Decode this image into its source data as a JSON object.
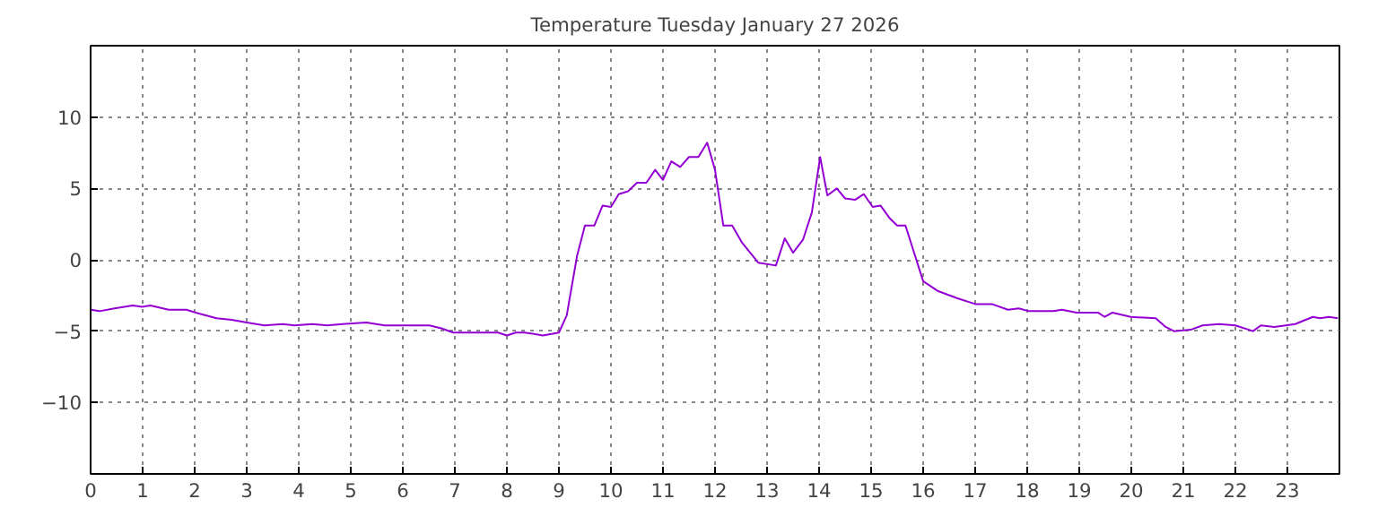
{
  "chart_data": {
    "type": "line",
    "title": "Temperature Tuesday January 27 2026",
    "xlim": [
      0,
      24
    ],
    "xticks": [
      0,
      1,
      2,
      3,
      4,
      5,
      6,
      7,
      8,
      9,
      10,
      11,
      12,
      13,
      14,
      15,
      16,
      17,
      18,
      19,
      20,
      21,
      22,
      23
    ],
    "ylim": [
      -15,
      15
    ],
    "yticks": [
      -10,
      -5,
      0,
      5,
      10
    ],
    "grid": true,
    "line_style": "solid",
    "marker": "none",
    "series": [
      {
        "color": "#9400d3",
        "x": [
          0,
          0.17,
          0.46,
          0.81,
          0.99,
          1.15,
          1.5,
          1.84,
          2.02,
          2.42,
          2.71,
          3.0,
          3.34,
          3.69,
          3.92,
          4.26,
          4.55,
          4.84,
          5.3,
          5.65,
          6.51,
          6.74,
          6.97,
          7.83,
          8.0,
          8.17,
          8.34,
          8.52,
          8.69,
          8.86,
          9.0,
          9.15,
          9.35,
          9.5,
          9.68,
          9.84,
          10.0,
          10.15,
          10.33,
          10.5,
          10.68,
          10.85,
          11.0,
          11.16,
          11.33,
          11.5,
          11.68,
          11.85,
          12.0,
          12.16,
          12.33,
          12.52,
          12.83,
          13.17,
          13.34,
          13.5,
          13.69,
          13.86,
          14.02,
          14.16,
          14.34,
          14.5,
          14.69,
          14.86,
          15.03,
          15.18,
          15.36,
          15.5,
          15.66,
          16.0,
          16.29,
          16.66,
          17.0,
          17.32,
          17.63,
          17.84,
          18.03,
          18.5,
          18.67,
          18.95,
          19.36,
          19.49,
          19.64,
          19.99,
          20.47,
          20.66,
          20.82,
          21.14,
          21.37,
          21.69,
          22.0,
          22.34,
          22.49,
          22.75,
          23.15,
          23.49,
          23.63,
          23.8,
          23.97
        ],
        "values": [
          -3.5,
          -3.6,
          -3.4,
          -3.2,
          -3.3,
          -3.2,
          -3.5,
          -3.5,
          -3.7,
          -4.1,
          -4.2,
          -4.4,
          -4.6,
          -4.5,
          -4.6,
          -4.5,
          -4.6,
          -4.5,
          -4.4,
          -4.6,
          -4.6,
          -4.8,
          -5.1,
          -5.1,
          -5.3,
          -5.1,
          -5.1,
          -5.2,
          -5.3,
          -5.2,
          -5.1,
          -3.9,
          0.3,
          2.4,
          2.4,
          3.8,
          3.7,
          4.6,
          4.8,
          5.4,
          5.4,
          6.3,
          5.6,
          6.9,
          6.5,
          7.2,
          7.2,
          8.2,
          6.3,
          2.4,
          2.4,
          1.2,
          -0.2,
          -0.4,
          1.5,
          0.5,
          1.4,
          3.3,
          7.2,
          4.5,
          5.0,
          4.3,
          4.2,
          4.6,
          3.7,
          3.8,
          2.9,
          2.4,
          2.4,
          -1.5,
          -2.2,
          -2.7,
          -3.1,
          -3.1,
          -3.5,
          -3.4,
          -3.6,
          -3.6,
          -3.5,
          -3.7,
          -3.7,
          -4.0,
          -3.7,
          -4.0,
          -4.1,
          -4.7,
          -5.0,
          -4.9,
          -4.6,
          -4.5,
          -4.6,
          -5.0,
          -4.6,
          -4.7,
          -4.5,
          -4.0,
          -4.1,
          -4.0,
          -4.1
        ]
      }
    ]
  }
}
